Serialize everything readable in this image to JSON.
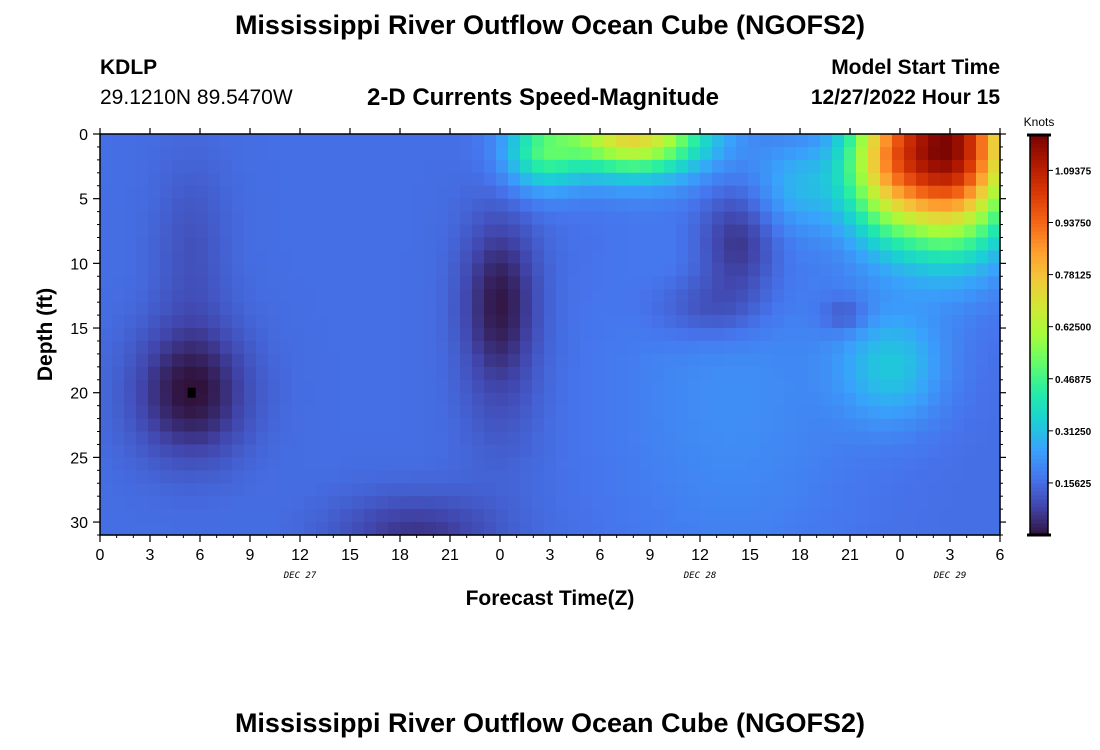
{
  "header": {
    "title": "Mississippi River Outflow Ocean Cube (NGOFS2)",
    "station": "KDLP",
    "coordinates": "29.1210N  89.5470W",
    "subtitle": "2-D Currents Speed-Magnitude",
    "start_label": "Model Start Time",
    "start_value": "12/27/2022 Hour 15"
  },
  "footer": {
    "repeat_title": "Mississippi River Outflow Ocean Cube (NGOFS2)"
  },
  "chart_data": {
    "type": "heatmap",
    "title": "2-D Currents Speed-Magnitude",
    "xlabel": "Forecast Time(Z)",
    "ylabel": "Depth (ft)",
    "xlim": [
      0,
      54
    ],
    "ylim": [
      0,
      31
    ],
    "y_inverted": true,
    "x_tick_positions": [
      0,
      3,
      6,
      9,
      12,
      15,
      18,
      21,
      24,
      27,
      30,
      33,
      36,
      39,
      42,
      45,
      48,
      51,
      54
    ],
    "x_tick_labels": [
      "0",
      "3",
      "6",
      "9",
      "12",
      "15",
      "18",
      "21",
      "0",
      "3",
      "6",
      "9",
      "12",
      "15",
      "18",
      "21",
      "0",
      "3",
      "6"
    ],
    "x_date_labels": [
      {
        "label": "DEC 27",
        "at": 12
      },
      {
        "label": "DEC 28",
        "at": 36
      },
      {
        "label": "DEC 29",
        "at": 51
      }
    ],
    "y_ticks": [
      0,
      5,
      10,
      15,
      20,
      25,
      30
    ],
    "colorbar": {
      "title": "Knots",
      "min": 0,
      "max": 1.2,
      "ticks": [
        0.15625,
        0.3125,
        0.46875,
        0.625,
        0.78125,
        0.9375,
        1.09375
      ],
      "tick_labels": [
        "0.15625",
        "0.31250",
        "0.46875",
        "0.62500",
        "0.78125",
        "0.93750",
        "1.09375"
      ],
      "colors": [
        "#30123b",
        "#4145ab",
        "#4675ed",
        "#39a2fc",
        "#1bcfd4",
        "#24eca6",
        "#61fc6c",
        "#a4fc3b",
        "#d1e834",
        "#f3c63a",
        "#fe9b2d",
        "#f36315",
        "#d93806",
        "#b11901",
        "#7a0402"
      ]
    },
    "base_speed_knots": 0.16,
    "features": [
      {
        "x": 5.5,
        "y": 20,
        "sx": 2.4,
        "sy": 3.6,
        "delta": -0.16
      },
      {
        "x": 5.5,
        "y": 9,
        "sx": 1.6,
        "sy": 5,
        "delta": -0.05
      },
      {
        "x": 24,
        "y": 13,
        "sx": 1.6,
        "sy": 4.5,
        "delta": -0.15
      },
      {
        "x": 24,
        "y": 22,
        "sx": 1.8,
        "sy": 4,
        "delta": -0.03
      },
      {
        "x": 19,
        "y": 31,
        "sx": 3.5,
        "sy": 2.2,
        "delta": -0.1
      },
      {
        "x": 38.3,
        "y": 8.5,
        "sx": 1.7,
        "sy": 3,
        "delta": -0.13
      },
      {
        "x": 36.5,
        "y": 13.5,
        "sx": 2.3,
        "sy": 1.8,
        "delta": -0.08
      },
      {
        "x": 44.7,
        "y": 14,
        "sx": 1,
        "sy": 1,
        "delta": -0.08
      },
      {
        "x": 32,
        "y": 0,
        "sx": 3,
        "sy": 2.2,
        "delta": 0.58
      },
      {
        "x": 26.5,
        "y": 1.5,
        "sx": 1.6,
        "sy": 2,
        "delta": 0.25
      },
      {
        "x": 38,
        "y": 20,
        "sx": 5,
        "sy": 10,
        "delta": 0.06
      },
      {
        "x": 51,
        "y": 1,
        "sx": 2.6,
        "sy": 5,
        "delta": 1.0
      },
      {
        "x": 47,
        "y": 2,
        "sx": 1.8,
        "sy": 4,
        "delta": 0.4
      },
      {
        "x": 47.5,
        "y": 18,
        "sx": 2.2,
        "sy": 3,
        "delta": 0.16
      },
      {
        "x": 42,
        "y": 4,
        "sx": 2,
        "sy": 2.5,
        "delta": 0.12
      }
    ],
    "marker": {
      "x": 5.5,
      "y": 20
    }
  }
}
